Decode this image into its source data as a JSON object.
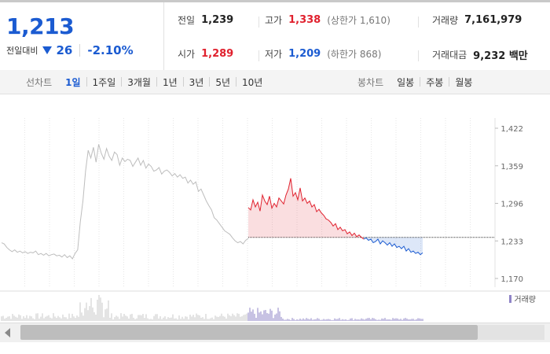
{
  "quote": {
    "price": "1,213",
    "change_label": "전일대비",
    "change_value": "26",
    "change_rate": "-2.10%"
  },
  "stats": {
    "prev_close_label": "전일",
    "prev_close": "1,239",
    "high_label": "고가",
    "high": "1,338",
    "upper_limit": "(상한가 1,610)",
    "volume_label": "거래량",
    "volume": "7,161,979",
    "open_label": "시가",
    "open": "1,289",
    "low_label": "저가",
    "low": "1,209",
    "lower_limit": "(하한가 868)",
    "value_label": "거래대금",
    "value": "9,232 백만"
  },
  "line_tabs": {
    "title": "선차트",
    "items": [
      "1일",
      "1주일",
      "3개월",
      "1년",
      "3년",
      "5년",
      "10년"
    ],
    "active": "1일"
  },
  "candle_tabs": {
    "title": "봉차트",
    "items": [
      "일봉",
      "주봉",
      "월봉"
    ]
  },
  "colors": {
    "up": "#e0212e",
    "down": "#1b5bd1",
    "history": "#bdbdbd",
    "volume_today": "#8f84c7"
  },
  "chart_data": {
    "type": "line",
    "y_ticks": [
      "1,422",
      "1,359",
      "1,296",
      "1,233",
      "1,170"
    ],
    "ylim": [
      1170,
      1422
    ],
    "reference_price": 1239,
    "legend": "거래량",
    "history_series": [
      1230,
      1228,
      1222,
      1218,
      1215,
      1218,
      1214,
      1216,
      1213,
      1215,
      1212,
      1214,
      1213,
      1216,
      1210,
      1212,
      1209,
      1212,
      1208,
      1210,
      1211,
      1208,
      1209,
      1206,
      1210,
      1205,
      1208,
      1203,
      1212,
      1218,
      1265,
      1300,
      1350,
      1385,
      1372,
      1390,
      1365,
      1395,
      1380,
      1370,
      1388,
      1375,
      1368,
      1382,
      1378,
      1360,
      1372,
      1366,
      1370,
      1368,
      1358,
      1365,
      1372,
      1360,
      1368,
      1355,
      1362,
      1358,
      1350,
      1352,
      1356,
      1345,
      1350,
      1352,
      1348,
      1342,
      1346,
      1340,
      1344,
      1338,
      1340,
      1330,
      1335,
      1328,
      1332,
      1316,
      1320,
      1310,
      1300,
      1292,
      1285,
      1272,
      1268,
      1262,
      1256,
      1250,
      1247,
      1244,
      1238,
      1233,
      1230,
      1232,
      1228,
      1234,
      1237
    ],
    "today_series": [
      1289,
      1285,
      1302,
      1290,
      1298,
      1283,
      1310,
      1300,
      1294,
      1308,
      1288,
      1296,
      1290,
      1305,
      1300,
      1295,
      1310,
      1320,
      1338,
      1308,
      1314,
      1302,
      1322,
      1300,
      1305,
      1296,
      1300,
      1290,
      1294,
      1282,
      1286,
      1280,
      1276,
      1270,
      1268,
      1264,
      1258,
      1262,
      1252,
      1256,
      1250,
      1252,
      1245,
      1248,
      1242,
      1246,
      1240,
      1243,
      1239,
      1236,
      1238,
      1234,
      1236,
      1230,
      1232,
      1236,
      1228,
      1233,
      1230,
      1226,
      1230,
      1224,
      1228,
      1222,
      1224,
      1220,
      1224,
      1216,
      1220,
      1214,
      1216,
      1212,
      1214,
      1210,
      1213
    ]
  }
}
